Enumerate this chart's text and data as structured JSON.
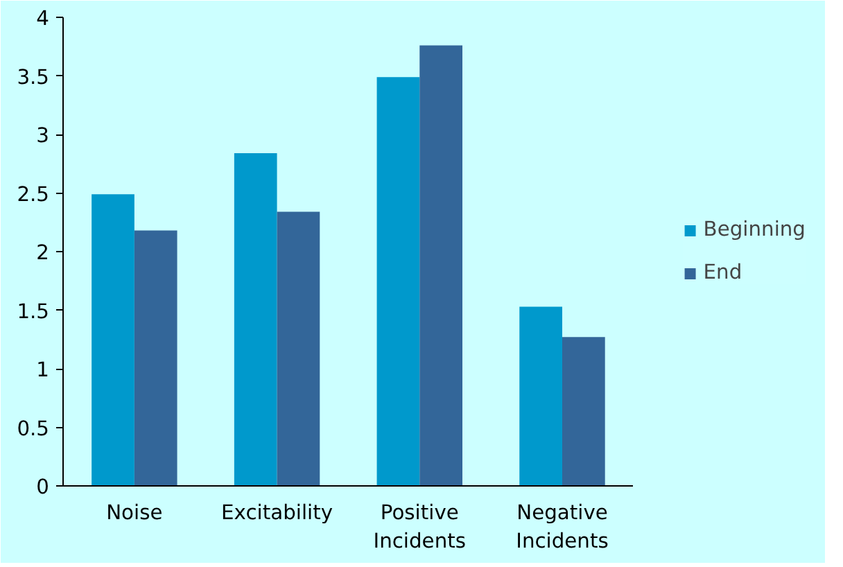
{
  "chart_data": {
    "type": "bar",
    "categories": [
      "Noise",
      "Excitability",
      "Positive Incidents",
      "Negative Incidents"
    ],
    "series": [
      {
        "name": "Beginning",
        "color": "#0099cc",
        "values": [
          2.49,
          2.84,
          3.49,
          1.53
        ]
      },
      {
        "name": "End",
        "color": "#336699",
        "values": [
          2.18,
          2.34,
          3.76,
          1.27
        ]
      }
    ],
    "ylim": [
      0,
      4
    ],
    "yticks": [
      0,
      0.5,
      1,
      1.5,
      2,
      2.5,
      3,
      3.5,
      4
    ],
    "grid": false,
    "legend": "right"
  }
}
